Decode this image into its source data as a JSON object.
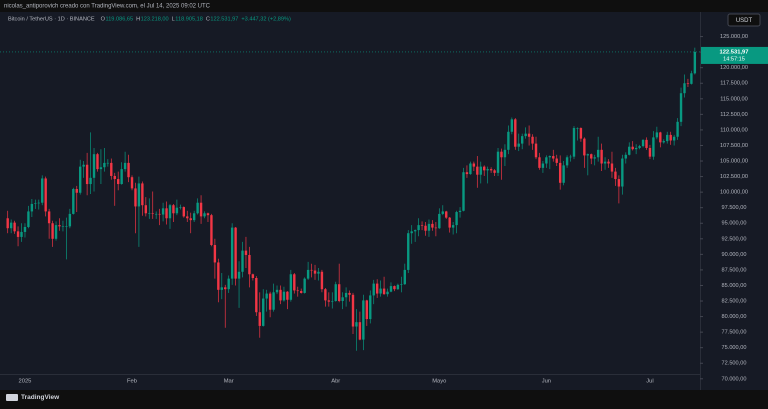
{
  "page": {
    "caption": "nicolas_antiporovich creado con TradingView.com, el Jul 14, 2025 09:02 UTC",
    "brand": "TradingView"
  },
  "chart_data": {
    "type": "candlestick",
    "symbol": "Bitcoin / TetherUS · 1D · BINANCE",
    "header": [
      {
        "label": "O",
        "value": "119.086,65"
      },
      {
        "label": "H",
        "value": "123.218,00"
      },
      {
        "label": "L",
        "value": "118.905,18"
      },
      {
        "label": "C",
        "value": "122.531,97"
      }
    ],
    "change": "+3.447,32 (+2,89%)",
    "currency": "USDT",
    "price_label": "122.531,97",
    "countdown": "14:57:15",
    "up_color": "#089981",
    "down_color": "#f23645",
    "grid": false,
    "categories": [
      null,
      null,
      null,
      null,
      null,
      "2025",
      null,
      null,
      null,
      null,
      null,
      null,
      null,
      null,
      null,
      null,
      null,
      null,
      null,
      null,
      null,
      null,
      null,
      null,
      null,
      null,
      null,
      null,
      null,
      null,
      null,
      null,
      null,
      null,
      null,
      null,
      "Feb",
      null,
      null,
      null,
      null,
      null,
      null,
      null,
      null,
      null,
      null,
      null,
      null,
      null,
      null,
      null,
      null,
      null,
      null,
      null,
      null,
      null,
      null,
      null,
      null,
      null,
      null,
      null,
      "Mar",
      null,
      null,
      null,
      null,
      null,
      null,
      null,
      null,
      null,
      null,
      null,
      null,
      null,
      null,
      null,
      null,
      null,
      null,
      null,
      null,
      null,
      null,
      null,
      null,
      null,
      null,
      null,
      null,
      null,
      null,
      "Abr",
      null,
      null,
      null,
      null,
      null,
      null,
      null,
      null,
      null,
      null,
      null,
      null,
      null,
      null,
      null,
      null,
      null,
      null,
      null,
      null,
      null,
      null,
      null,
      null,
      null,
      null,
      null,
      null,
      null,
      "Mayo",
      null,
      null,
      null,
      null,
      null,
      null,
      null,
      null,
      null,
      null,
      null,
      null,
      null,
      null,
      null,
      null,
      null,
      null,
      null,
      null,
      null,
      null,
      null,
      null,
      null,
      null,
      null,
      null,
      null,
      null,
      "Jun",
      null,
      null,
      null,
      null,
      null,
      null,
      null,
      null,
      null,
      null,
      null,
      null,
      null,
      null,
      null,
      null,
      null,
      null,
      null,
      null,
      null,
      null,
      null,
      null,
      null,
      null,
      null,
      null,
      null,
      "Jul",
      null,
      null,
      null,
      null,
      null,
      null,
      null,
      null,
      null,
      null,
      null,
      null,
      null
    ],
    "open": [
      95800,
      94200,
      95100,
      93700,
      92800,
      93600,
      94400,
      96900,
      98100,
      98200,
      98300,
      102200,
      96900,
      95000,
      92500,
      94700,
      94500,
      94500,
      94500,
      96500,
      100500,
      99900,
      104100,
      104400,
      101300,
      102300,
      106100,
      103700,
      104000,
      104700,
      104700,
      102600,
      102100,
      101300,
      103700,
      104700,
      102400,
      100600,
      97700,
      101400,
      97900,
      96600,
      96600,
      96500,
      96500,
      96400,
      97400,
      95800,
      97900,
      96600,
      97500,
      97600,
      96100,
      95800,
      95500,
      96600,
      98300,
      96100,
      96600,
      96300,
      91500,
      88700,
      84300,
      84700,
      84400,
      86100,
      94300,
      86100,
      87200,
      90600,
      89900,
      86800,
      86200,
      80700,
      78500,
      82900,
      83700,
      81100,
      83900,
      84300,
      82600,
      84000,
      82700,
      86800,
      84200,
      84100,
      83800,
      86100,
      87500,
      87400,
      86900,
      87200,
      84400,
      82600,
      82400,
      82500,
      85200,
      82500,
      83100,
      83800,
      83500,
      78400,
      79100,
      76300,
      82600,
      79600,
      83400,
      85300,
      83700,
      84500,
      83600,
      84000,
      84900,
      84400,
      85100,
      85200,
      87500,
      93400,
      93700,
      93900,
      94700,
      94600,
      93800,
      94900,
      94300,
      94200,
      96500,
      96900,
      95900,
      94300,
      94700,
      96800,
      97000,
      103200,
      102900,
      104600,
      104100,
      102800,
      104100,
      103500,
      103700,
      103500,
      103100,
      106500,
      105600,
      106800,
      109700,
      111700,
      107300,
      107800,
      109000,
      109400,
      108900,
      107800,
      105600,
      103900,
      104600,
      105600,
      105800,
      105400,
      104700,
      101500,
      104300,
      105600,
      105700,
      110300,
      110300,
      108600,
      105900,
      106100,
      105400,
      105600,
      106800,
      104600,
      104900,
      104600,
      103300,
      102100,
      100900,
      105400,
      106000,
      107300,
      106900,
      107100,
      107400,
      108400,
      107100,
      105700,
      108800,
      109600,
      108000,
      108200,
      109200,
      108300,
      108900,
      111300,
      115900,
      117500,
      117400,
      119086.65
    ],
    "high": [
      97000,
      95600,
      95400,
      94500,
      95000,
      95000,
      97800,
      98900,
      98800,
      98800,
      102700,
      102500,
      97300,
      95400,
      95300,
      95800,
      95400,
      95900,
      97300,
      100700,
      101000,
      105200,
      105000,
      106300,
      109600,
      107100,
      106300,
      106900,
      107100,
      105300,
      105400,
      103100,
      103300,
      104800,
      106500,
      106000,
      102700,
      101500,
      102500,
      101700,
      99200,
      99000,
      100100,
      96900,
      97300,
      98300,
      98500,
      98100,
      98100,
      98800,
      98000,
      97700,
      97000,
      96700,
      97000,
      99000,
      99500,
      96900,
      96700,
      96500,
      92500,
      89300,
      87000,
      85100,
      86600,
      95000,
      94400,
      88900,
      92000,
      92800,
      91200,
      86900,
      86500,
      83900,
      84400,
      84300,
      84000,
      85300,
      85000,
      85000,
      84800,
      84100,
      87500,
      87000,
      84800,
      84500,
      86300,
      88800,
      88500,
      88300,
      87800,
      87500,
      84600,
      83900,
      83900,
      85600,
      88500,
      83900,
      84700,
      84200,
      83800,
      81200,
      80800,
      83500,
      82700,
      84200,
      85900,
      86000,
      85800,
      86400,
      84500,
      85500,
      85000,
      85300,
      86400,
      88500,
      93900,
      94700,
      94000,
      95800,
      95300,
      95200,
      95600,
      95500,
      95200,
      97400,
      97900,
      97000,
      96000,
      95200,
      97000,
      97600,
      103900,
      104300,
      104900,
      104900,
      105800,
      104900,
      104300,
      104100,
      104000,
      103700,
      107100,
      107000,
      107700,
      110700,
      112000,
      111900,
      109400,
      109400,
      110400,
      110700,
      109300,
      108900,
      106300,
      105000,
      105900,
      105900,
      106800,
      106000,
      105900,
      105000,
      105900,
      106000,
      110600,
      110400,
      110400,
      108800,
      106200,
      106200,
      106000,
      108900,
      107800,
      105600,
      105300,
      106500,
      103900,
      102700,
      106000,
      106400,
      108000,
      108200,
      107700,
      107600,
      108500,
      108800,
      107600,
      109800,
      110500,
      109700,
      108500,
      109700,
      109700,
      109200,
      111900,
      116800,
      118900,
      118200,
      119500,
      123218
    ],
    "low": [
      93400,
      93400,
      93300,
      91300,
      92000,
      92700,
      94200,
      96000,
      97300,
      97200,
      97900,
      96100,
      92500,
      91200,
      92200,
      93800,
      93700,
      89200,
      94200,
      96400,
      96800,
      99600,
      102300,
      99500,
      99700,
      100100,
      103300,
      101300,
      103300,
      104100,
      102000,
      97800,
      100300,
      101200,
      103300,
      101600,
      100300,
      93400,
      91200,
      96200,
      96100,
      95700,
      95700,
      95700,
      94700,
      95300,
      94800,
      94100,
      95200,
      96300,
      97200,
      95900,
      95200,
      93400,
      95200,
      96400,
      94900,
      95800,
      95200,
      91300,
      86100,
      82300,
      82800,
      78200,
      83800,
      85100,
      85000,
      81400,
      86300,
      87800,
      84700,
      85800,
      80100,
      76600,
      78400,
      80800,
      79900,
      80800,
      83600,
      82000,
      82400,
      81200,
      82400,
      83700,
      83200,
      83700,
      83700,
      85900,
      86300,
      85900,
      85800,
      83900,
      81600,
      81600,
      81300,
      82400,
      82300,
      81200,
      81600,
      82400,
      77200,
      74500,
      76200,
      74600,
      78500,
      78900,
      82000,
      83000,
      83200,
      83500,
      83200,
      83900,
      84100,
      84300,
      83900,
      85100,
      87000,
      91700,
      92000,
      92900,
      93900,
      93000,
      92800,
      93800,
      92900,
      94100,
      96300,
      95700,
      93500,
      93200,
      93400,
      95900,
      96900,
      102300,
      102800,
      103400,
      100700,
      101400,
      102600,
      101400,
      103100,
      102600,
      102600,
      102000,
      104200,
      106100,
      109300,
      106800,
      106600,
      106900,
      108600,
      107500,
      106800,
      105300,
      103600,
      103100,
      103900,
      103700,
      104900,
      104200,
      100400,
      101100,
      103900,
      104900,
      105300,
      108300,
      108100,
      103900,
      102700,
      104500,
      104300,
      104900,
      103400,
      103600,
      103900,
      102300,
      101000,
      98200,
      99600,
      104600,
      105900,
      106700,
      106100,
      106900,
      107200,
      106800,
      105300,
      105200,
      108500,
      107200,
      107800,
      107800,
      107600,
      107500,
      108400,
      110600,
      115200,
      116900,
      117300,
      118905.18
    ],
    "close": [
      94200,
      95100,
      93700,
      92800,
      93600,
      94400,
      96900,
      98100,
      98200,
      98300,
      102200,
      96900,
      95000,
      92500,
      94700,
      94500,
      94500,
      94500,
      96500,
      100500,
      99900,
      104100,
      104400,
      101300,
      102300,
      106100,
      103700,
      104000,
      104700,
      104700,
      102600,
      102100,
      101300,
      103700,
      104700,
      102400,
      100600,
      97700,
      101400,
      97900,
      96600,
      96600,
      96500,
      96500,
      96400,
      97400,
      95800,
      97900,
      96600,
      97500,
      97600,
      96100,
      95800,
      95500,
      96600,
      98300,
      96100,
      96600,
      96300,
      91500,
      88700,
      84300,
      84700,
      84400,
      86100,
      94300,
      86100,
      87200,
      90600,
      89900,
      86800,
      86200,
      80700,
      78500,
      82900,
      83700,
      81100,
      83900,
      84300,
      82600,
      84000,
      82700,
      86800,
      84200,
      84100,
      83800,
      86100,
      87500,
      87400,
      86900,
      87200,
      84400,
      82600,
      82400,
      82500,
      85200,
      82500,
      83100,
      83800,
      83500,
      78400,
      79100,
      76300,
      82600,
      79600,
      83400,
      85300,
      83700,
      84500,
      83600,
      84000,
      84900,
      84400,
      85100,
      85200,
      87500,
      93400,
      93700,
      93900,
      94700,
      94600,
      93800,
      94900,
      94300,
      94200,
      96500,
      96900,
      95900,
      94300,
      94700,
      96800,
      97000,
      103200,
      102900,
      104600,
      104100,
      102800,
      104100,
      103500,
      103700,
      103500,
      103100,
      106500,
      105600,
      106800,
      109700,
      111700,
      107300,
      107800,
      109000,
      109400,
      108900,
      107800,
      105600,
      103900,
      104600,
      105600,
      105800,
      105400,
      104700,
      101500,
      104300,
      105600,
      105700,
      110300,
      110300,
      108600,
      105900,
      106100,
      105400,
      105600,
      106800,
      104600,
      104900,
      104600,
      103300,
      102100,
      100900,
      105400,
      106000,
      107300,
      106900,
      107100,
      107400,
      108400,
      107100,
      105700,
      108800,
      109600,
      108000,
      108200,
      109200,
      108300,
      108900,
      111300,
      115900,
      117500,
      117400,
      119100,
      122531.97
    ],
    "ylim": [
      68200,
      128950
    ],
    "yticks": [
      {
        "value": 125000,
        "label": "125.000,00"
      },
      {
        "value": 122500,
        "label": "122.500,00"
      },
      {
        "value": 120000,
        "label": "120.000,00"
      },
      {
        "value": 117500,
        "label": "117.500,00"
      },
      {
        "value": 115000,
        "label": "115.000,00"
      },
      {
        "value": 112500,
        "label": "112.500,00"
      },
      {
        "value": 110000,
        "label": "110.000,00"
      },
      {
        "value": 107500,
        "label": "107.500,00"
      },
      {
        "value": 105000,
        "label": "105.000,00"
      },
      {
        "value": 102500,
        "label": "102.500,00"
      },
      {
        "value": 100000,
        "label": "100.000,00"
      },
      {
        "value": 97500,
        "label": "97.500,00"
      },
      {
        "value": 95000,
        "label": "95.000,00"
      },
      {
        "value": 92500,
        "label": "92.500,00"
      },
      {
        "value": 90000,
        "label": "90.000,00"
      },
      {
        "value": 87500,
        "label": "87.500,00"
      },
      {
        "value": 85000,
        "label": "85.000,00"
      },
      {
        "value": 82500,
        "label": "82.500,00"
      },
      {
        "value": 80000,
        "label": "80.000,00"
      },
      {
        "value": 77500,
        "label": "77.500,00"
      },
      {
        "value": 75000,
        "label": "75.000,00"
      },
      {
        "value": 72500,
        "label": "72.500,00"
      },
      {
        "value": 70000,
        "label": "70.000,00"
      }
    ]
  }
}
